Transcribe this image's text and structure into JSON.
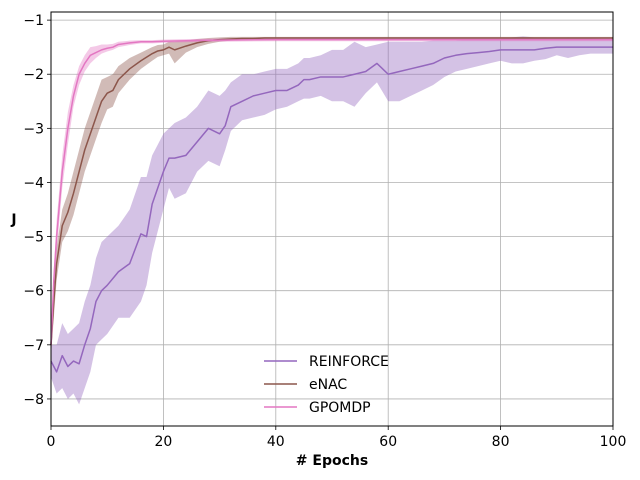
{
  "chart_data": {
    "type": "line",
    "title": "",
    "xlabel": "# Epochs",
    "ylabel": "J",
    "xlim": [
      0,
      100
    ],
    "ylim": [
      -8.5,
      -0.85
    ],
    "xticks": [
      0,
      20,
      40,
      60,
      80,
      100
    ],
    "yticks": [
      -8,
      -7,
      -6,
      -5,
      -4,
      -3,
      -2,
      -1
    ],
    "xtick_labels": [
      "0",
      "20",
      "40",
      "60",
      "80",
      "100"
    ],
    "ytick_labels": [
      "−8",
      "−7",
      "−6",
      "−5",
      "−4",
      "−3",
      "−2",
      "−1"
    ],
    "grid": true,
    "legend": "bottom-center",
    "series": [
      {
        "name": "REINFORCE",
        "color": "#9467bd",
        "x": [
          0,
          1,
          2,
          3,
          4,
          5,
          6,
          7,
          8,
          9,
          10,
          12,
          14,
          16,
          17,
          18,
          19,
          20,
          21,
          22,
          24,
          26,
          28,
          30,
          31,
          32,
          34,
          36,
          38,
          40,
          42,
          44,
          45,
          46,
          48,
          50,
          52,
          54,
          56,
          58,
          60,
          62,
          64,
          66,
          68,
          70,
          72,
          74,
          76,
          78,
          80,
          82,
          84,
          86,
          88,
          90,
          92,
          94,
          96,
          98,
          100
        ],
        "y": [
          -7.3,
          -7.5,
          -7.2,
          -7.4,
          -7.3,
          -7.35,
          -7.0,
          -6.7,
          -6.2,
          -6.0,
          -5.9,
          -5.65,
          -5.5,
          -4.95,
          -5.0,
          -4.4,
          -4.1,
          -3.8,
          -3.55,
          -3.55,
          -3.5,
          -3.25,
          -3.0,
          -3.1,
          -2.95,
          -2.6,
          -2.5,
          -2.4,
          -2.35,
          -2.3,
          -2.3,
          -2.2,
          -2.1,
          -2.1,
          -2.05,
          -2.05,
          -2.05,
          -2.0,
          -1.95,
          -1.8,
          -2.0,
          -1.95,
          -1.9,
          -1.85,
          -1.8,
          -1.7,
          -1.65,
          -1.62,
          -1.6,
          -1.58,
          -1.55,
          -1.55,
          -1.55,
          -1.55,
          -1.52,
          -1.5,
          -1.5,
          -1.5,
          -1.5,
          -1.5,
          -1.5
        ],
        "lower": [
          -7.6,
          -7.9,
          -7.8,
          -8.0,
          -7.9,
          -8.1,
          -7.8,
          -7.5,
          -7.0,
          -6.9,
          -6.8,
          -6.5,
          -6.5,
          -6.2,
          -5.9,
          -5.3,
          -4.9,
          -4.5,
          -4.1,
          -4.3,
          -4.2,
          -3.8,
          -3.6,
          -3.7,
          -3.4,
          -3.05,
          -2.85,
          -2.8,
          -2.75,
          -2.65,
          -2.6,
          -2.5,
          -2.45,
          -2.45,
          -2.4,
          -2.5,
          -2.5,
          -2.6,
          -2.35,
          -2.15,
          -2.5,
          -2.5,
          -2.4,
          -2.3,
          -2.2,
          -2.05,
          -1.95,
          -1.9,
          -1.85,
          -1.8,
          -1.75,
          -1.8,
          -1.8,
          -1.75,
          -1.72,
          -1.65,
          -1.7,
          -1.65,
          -1.62,
          -1.62,
          -1.62
        ],
        "upper": [
          -7.0,
          -7.0,
          -6.6,
          -6.8,
          -6.7,
          -6.6,
          -6.2,
          -5.9,
          -5.4,
          -5.1,
          -5.0,
          -4.8,
          -4.5,
          -3.9,
          -3.9,
          -3.5,
          -3.3,
          -3.1,
          -3.0,
          -2.9,
          -2.8,
          -2.6,
          -2.3,
          -2.4,
          -2.3,
          -2.15,
          -2.0,
          -2.0,
          -1.95,
          -1.9,
          -1.9,
          -1.8,
          -1.7,
          -1.7,
          -1.65,
          -1.55,
          -1.55,
          -1.4,
          -1.5,
          -1.45,
          -1.4,
          -1.4,
          -1.4,
          -1.4,
          -1.38,
          -1.38,
          -1.38,
          -1.36,
          -1.36,
          -1.36,
          -1.35,
          -1.32,
          -1.3,
          -1.32,
          -1.32,
          -1.34,
          -1.32,
          -1.34,
          -1.34,
          -1.35,
          -1.35
        ]
      },
      {
        "name": "eNAC",
        "color": "#8c564b",
        "x": [
          0,
          0.5,
          1,
          2,
          3,
          4,
          5,
          6,
          7,
          8,
          9,
          10,
          11,
          12,
          14,
          16,
          18,
          19,
          20,
          21,
          22,
          24,
          26,
          28,
          30,
          32,
          34,
          36,
          38,
          40,
          45,
          50,
          60,
          70,
          80,
          90,
          100
        ],
        "y": [
          -7.0,
          -6.2,
          -5.5,
          -4.8,
          -4.55,
          -4.2,
          -3.8,
          -3.4,
          -3.1,
          -2.8,
          -2.5,
          -2.35,
          -2.3,
          -2.1,
          -1.9,
          -1.75,
          -1.62,
          -1.57,
          -1.55,
          -1.5,
          -1.55,
          -1.48,
          -1.42,
          -1.38,
          -1.36,
          -1.35,
          -1.34,
          -1.34,
          -1.33,
          -1.33,
          -1.33,
          -1.33,
          -1.33,
          -1.33,
          -1.33,
          -1.33,
          -1.33
        ],
        "lower": [
          -7.2,
          -6.5,
          -5.8,
          -5.1,
          -4.9,
          -4.6,
          -4.2,
          -3.8,
          -3.5,
          -3.2,
          -2.9,
          -2.65,
          -2.6,
          -2.35,
          -2.1,
          -1.9,
          -1.75,
          -1.68,
          -1.65,
          -1.62,
          -1.8,
          -1.6,
          -1.5,
          -1.44,
          -1.4,
          -1.38,
          -1.37,
          -1.36,
          -1.36,
          -1.36,
          -1.35,
          -1.35,
          -1.35,
          -1.35,
          -1.35,
          -1.35,
          -1.35
        ],
        "upper": [
          -6.8,
          -5.9,
          -5.2,
          -4.5,
          -4.2,
          -3.8,
          -3.4,
          -3.0,
          -2.7,
          -2.4,
          -2.1,
          -2.05,
          -2.0,
          -1.85,
          -1.7,
          -1.6,
          -1.5,
          -1.46,
          -1.45,
          -1.4,
          -1.4,
          -1.38,
          -1.35,
          -1.33,
          -1.32,
          -1.31,
          -1.31,
          -1.31,
          -1.31,
          -1.31,
          -1.31,
          -1.31,
          -1.31,
          -1.31,
          -1.31,
          -1.31,
          -1.31
        ]
      },
      {
        "name": "GPOMDP",
        "color": "#e377c2",
        "x": [
          0,
          0.5,
          1,
          2,
          3,
          4,
          5,
          6,
          7,
          8,
          9,
          10,
          11,
          12,
          14,
          16,
          18,
          20,
          25,
          30,
          40,
          50,
          60,
          70,
          80,
          90,
          100
        ],
        "y": [
          -7.0,
          -5.8,
          -5.0,
          -3.8,
          -3.0,
          -2.4,
          -2.0,
          -1.8,
          -1.65,
          -1.6,
          -1.55,
          -1.52,
          -1.5,
          -1.45,
          -1.42,
          -1.4,
          -1.4,
          -1.39,
          -1.38,
          -1.37,
          -1.36,
          -1.36,
          -1.36,
          -1.36,
          -1.36,
          -1.36,
          -1.36
        ],
        "lower": [
          -7.1,
          -6.0,
          -5.3,
          -4.1,
          -3.3,
          -2.6,
          -2.2,
          -1.95,
          -1.8,
          -1.7,
          -1.62,
          -1.58,
          -1.55,
          -1.5,
          -1.46,
          -1.43,
          -1.43,
          -1.42,
          -1.41,
          -1.4,
          -1.39,
          -1.39,
          -1.39,
          -1.39,
          -1.39,
          -1.39,
          -1.39
        ],
        "upper": [
          -6.9,
          -5.6,
          -4.7,
          -3.5,
          -2.7,
          -2.2,
          -1.85,
          -1.65,
          -1.5,
          -1.48,
          -1.45,
          -1.45,
          -1.44,
          -1.4,
          -1.38,
          -1.37,
          -1.37,
          -1.36,
          -1.35,
          -1.34,
          -1.33,
          -1.33,
          -1.33,
          -1.33,
          -1.33,
          -1.33,
          -1.33
        ]
      }
    ]
  }
}
